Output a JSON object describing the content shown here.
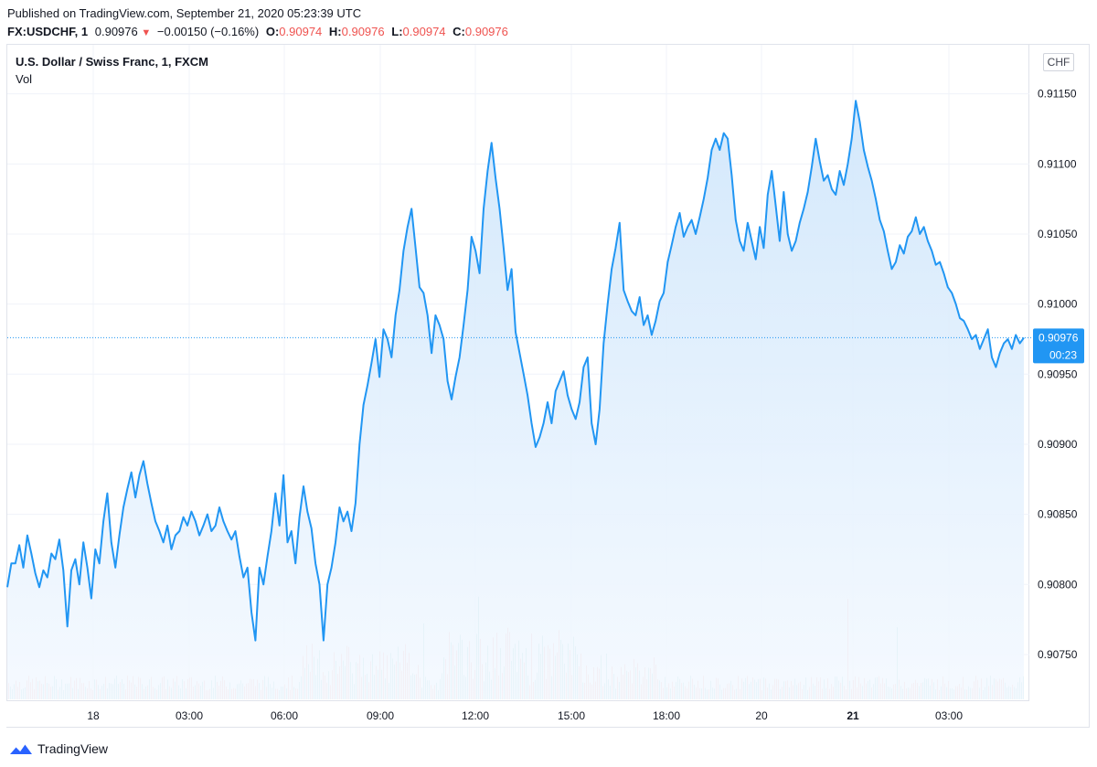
{
  "header": {
    "published": "Published on TradingView.com, September 21, 2020 05:23:39 UTC",
    "symbol": "FX:USDCHF, 1",
    "last": "0.90976",
    "arrow": "▼",
    "change": "−0.00150 (−0.16%)",
    "o_label": "O:",
    "o_value": "0.90974",
    "h_label": "H:",
    "h_value": "0.90976",
    "l_label": "L:",
    "l_value": "0.90974",
    "c_label": "C:",
    "c_value": "0.90976"
  },
  "legend": {
    "title": "U.S. Dollar / Swiss Franc, 1, FXCM",
    "volume": "Vol"
  },
  "currency_badge": "CHF",
  "footer": {
    "brand": "TradingView"
  },
  "colors": {
    "line": "#2196f3",
    "area_top": "#cfe6fb",
    "area_bottom": "#f4f9ff",
    "vol_up": "#26a69a",
    "vol_down": "#ef5350",
    "grid": "#f0f3fa"
  },
  "chart_data": {
    "type": "area",
    "title": "U.S. Dollar / Swiss Franc, 1, FXCM",
    "ylim": [
      0.90718,
      0.91185
    ],
    "y_ticks": [
      0.9115,
      0.911,
      0.9105,
      0.91,
      0.9095,
      0.909,
      0.9085,
      0.908,
      0.9075
    ],
    "y_tick_labels": [
      "0.91150",
      "0.91100",
      "0.91050",
      "0.91000",
      "0.90950",
      "0.90900",
      "0.90850",
      "0.90800",
      "0.90750"
    ],
    "x_tick_labels": [
      "18",
      "03:00",
      "06:00",
      "09:00",
      "12:00",
      "15:00",
      "18:00",
      "20",
      "21",
      "03:00"
    ],
    "x_tick_bold": [
      "21"
    ],
    "last_price": "0.90976",
    "countdown": "00:23",
    "grid": true,
    "series": [
      {
        "values": [
          0.90798,
          0.90815,
          0.90815,
          0.90828,
          0.90812,
          0.90835,
          0.90822,
          0.90808,
          0.90798,
          0.9081,
          0.90805,
          0.90822,
          0.90818,
          0.90832,
          0.9081,
          0.9077,
          0.9081,
          0.90818,
          0.908,
          0.9083,
          0.90812,
          0.9079,
          0.90825,
          0.90815,
          0.90845,
          0.90865,
          0.9083,
          0.90812,
          0.90835,
          0.90855,
          0.90868,
          0.9088,
          0.90862,
          0.90878,
          0.90888,
          0.90872,
          0.90858,
          0.90845,
          0.90838,
          0.9083,
          0.90842,
          0.90825,
          0.90835,
          0.90838,
          0.90848,
          0.90842,
          0.90852,
          0.90845,
          0.90835,
          0.90842,
          0.9085,
          0.90838,
          0.90842,
          0.90855,
          0.90845,
          0.90838,
          0.90832,
          0.90838,
          0.9082,
          0.90805,
          0.90812,
          0.9078,
          0.9076,
          0.90812,
          0.908,
          0.9082,
          0.90838,
          0.90865,
          0.90842,
          0.90878,
          0.9083,
          0.90838,
          0.90815,
          0.90848,
          0.9087,
          0.90852,
          0.9084,
          0.90815,
          0.908,
          0.9076,
          0.908,
          0.90812,
          0.9083,
          0.90855,
          0.90845,
          0.90852,
          0.90838,
          0.90858,
          0.909,
          0.90928,
          0.90942,
          0.90958,
          0.90975,
          0.90948,
          0.90982,
          0.90975,
          0.90962,
          0.90992,
          0.9101,
          0.91038,
          0.91055,
          0.91068,
          0.9104,
          0.91012,
          0.91008,
          0.90992,
          0.90965,
          0.90992,
          0.90985,
          0.90975,
          0.90945,
          0.90932,
          0.90948,
          0.90962,
          0.90985,
          0.9101,
          0.91048,
          0.91038,
          0.91022,
          0.91068,
          0.91095,
          0.91115,
          0.9109,
          0.91068,
          0.9104,
          0.9101,
          0.91025,
          0.9098,
          0.90965,
          0.9095,
          0.90935,
          0.90915,
          0.90898,
          0.90905,
          0.90915,
          0.9093,
          0.90915,
          0.90938,
          0.90945,
          0.90952,
          0.90935,
          0.90925,
          0.90918,
          0.9093,
          0.90955,
          0.90962,
          0.90915,
          0.909,
          0.90925,
          0.90972,
          0.91,
          0.91025,
          0.9104,
          0.91058,
          0.9101,
          0.91002,
          0.90995,
          0.90992,
          0.91005,
          0.90985,
          0.90992,
          0.90978,
          0.90988,
          0.91002,
          0.91008,
          0.9103,
          0.91042,
          0.91055,
          0.91065,
          0.91048,
          0.91055,
          0.9106,
          0.9105,
          0.91062,
          0.91075,
          0.9109,
          0.9111,
          0.91118,
          0.9111,
          0.91122,
          0.91118,
          0.91092,
          0.9106,
          0.91045,
          0.91038,
          0.91058,
          0.91045,
          0.91032,
          0.91055,
          0.9104,
          0.91078,
          0.91095,
          0.9107,
          0.91045,
          0.9108,
          0.9105,
          0.91038,
          0.91045,
          0.91058,
          0.91068,
          0.9108,
          0.91098,
          0.91118,
          0.91102,
          0.91088,
          0.91092,
          0.91082,
          0.91078,
          0.91095,
          0.91085,
          0.911,
          0.91118,
          0.91145,
          0.9113,
          0.9111,
          0.91098,
          0.91088,
          0.91075,
          0.9106,
          0.91052,
          0.91038,
          0.91025,
          0.9103,
          0.91042,
          0.91036,
          0.91048,
          0.91052,
          0.91062,
          0.9105,
          0.91055,
          0.91045,
          0.91038,
          0.91028,
          0.9103,
          0.91022,
          0.91012,
          0.91008,
          0.91,
          0.9099,
          0.90988,
          0.90982,
          0.90975,
          0.90978,
          0.90968,
          0.90975,
          0.90982,
          0.90962,
          0.90955,
          0.90965,
          0.90972,
          0.90975,
          0.90968,
          0.90978,
          0.90972,
          0.90976
        ]
      }
    ]
  }
}
